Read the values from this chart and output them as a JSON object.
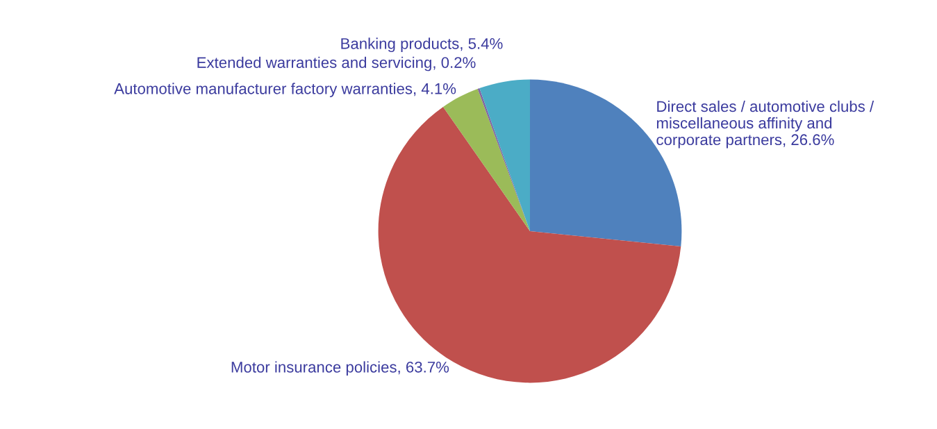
{
  "chart_data": {
    "type": "pie",
    "categories": [
      "Direct sales / automotive clubs /\nmiscellaneous affinity and\ncorporate partners",
      "Motor insurance policies",
      "Automotive manufacturer factory warranties",
      "Extended warranties and servicing",
      "Banking products"
    ],
    "values": [
      26.6,
      63.7,
      4.1,
      0.2,
      5.4
    ],
    "value_labels": [
      "26.6%",
      "63.7%",
      "4.1%",
      "0.2%",
      "5.4%"
    ],
    "colors": [
      "#4f81bd",
      "#c0504d",
      "#9bbb59",
      "#8064a2",
      "#4bacc6"
    ],
    "legend": false
  }
}
